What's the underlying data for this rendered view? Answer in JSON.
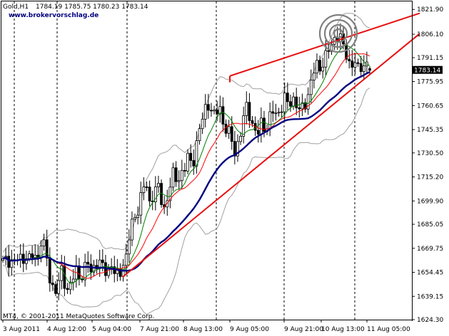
{
  "header": {
    "symbol_period": "Gold,H1",
    "ohlc": "1784.19 1785.75 1780.23 1783.14",
    "website": "www.brokervorschlag.de"
  },
  "footer": {
    "copyright": "MT4, © 2001-2011 MetaQuotes Software Corp."
  },
  "current_price_label": "1783.14",
  "colors": {
    "background": "#ffffff",
    "candle": "#000000",
    "bollinger_band": "#a0a0a0",
    "ma_fast": "#008000",
    "ma_medium": "#ff0000",
    "ma_slow": "#000080",
    "trendline": "#e81010",
    "period_separator": "#000000",
    "target_circles": "#808080",
    "price_box": "#000000"
  },
  "chart_data": {
    "type": "candlestick",
    "instrument": "Gold",
    "timeframe": "H1",
    "ylim": [
      1624.3,
      1827.0
    ],
    "y_ticks": [
      "1821.90",
      "1806.10",
      "1791.15",
      "1775.95",
      "1760.65",
      "1745.35",
      "1730.50",
      "1715.20",
      "1699.90",
      "1685.05",
      "1669.75",
      "1654.45",
      "1639.15",
      "1624.30"
    ],
    "x_ticks": [
      "3 Aug 2011",
      "4 Aug 12:00",
      "5 Aug 04:00",
      "7 Aug 21:00",
      "8 Aug 13:00",
      "9 Aug 05:00",
      "9 Aug 21:00",
      "10 Aug 13:00",
      "11 Aug 05:00"
    ],
    "period_separators": [
      "4 Aug 00:00",
      "5 Aug 00:00",
      "8 Aug 00:00",
      "9 Aug 00:00",
      "10 Aug 00:00",
      "11 Aug 00:00"
    ],
    "bars": 126,
    "last": {
      "open": 1784.19,
      "high": 1785.75,
      "low": 1780.23,
      "close": 1783.14
    },
    "ohlc_path": [
      1661,
      1662,
      1663,
      1660,
      1664,
      1662,
      1666,
      1661,
      1667,
      1662,
      1677,
      1668,
      1652,
      1645,
      1642,
      1656,
      1648,
      1643,
      1650,
      1655,
      1651,
      1656,
      1660,
      1653,
      1662,
      1660,
      1657,
      1654,
      1661,
      1653,
      1651,
      1660,
      1665,
      1682,
      1688,
      1696,
      1705,
      1712,
      1698,
      1706,
      1710,
      1700,
      1694,
      1708,
      1716,
      1713,
      1717,
      1720,
      1728,
      1722,
      1735,
      1746,
      1755,
      1763,
      1758,
      1752,
      1762,
      1750,
      1745,
      1740,
      1731,
      1738,
      1748,
      1760,
      1755,
      1745,
      1742,
      1750,
      1746,
      1752,
      1757,
      1754,
      1760,
      1765,
      1760,
      1766,
      1762,
      1756,
      1760,
      1768,
      1778,
      1786,
      1784,
      1790,
      1794,
      1798,
      1804,
      1808,
      1798,
      1792,
      1786,
      1790,
      1782,
      1786,
      1789,
      1783
    ],
    "overlays": [
      {
        "name": "Bollinger Bands",
        "kind": "band"
      },
      {
        "name": "MA fast",
        "kind": "line"
      },
      {
        "name": "MA medium",
        "kind": "line"
      },
      {
        "name": "MA slow",
        "kind": "line"
      }
    ],
    "trendlines": [
      {
        "from": [
          "5 Aug 04:00",
          1651.5
        ],
        "to": [
          "11 Aug 05:00+",
          1806.5
        ]
      },
      {
        "from": [
          "9 Aug 04:00",
          1779.5
        ],
        "to": [
          "11 Aug 05:00+",
          1819.5
        ]
      },
      {
        "from": [
          "9 Aug 04:00",
          1779.5
        ],
        "to": [
          "9 Aug 04:00",
          1775.5
        ]
      }
    ],
    "grid": false
  }
}
